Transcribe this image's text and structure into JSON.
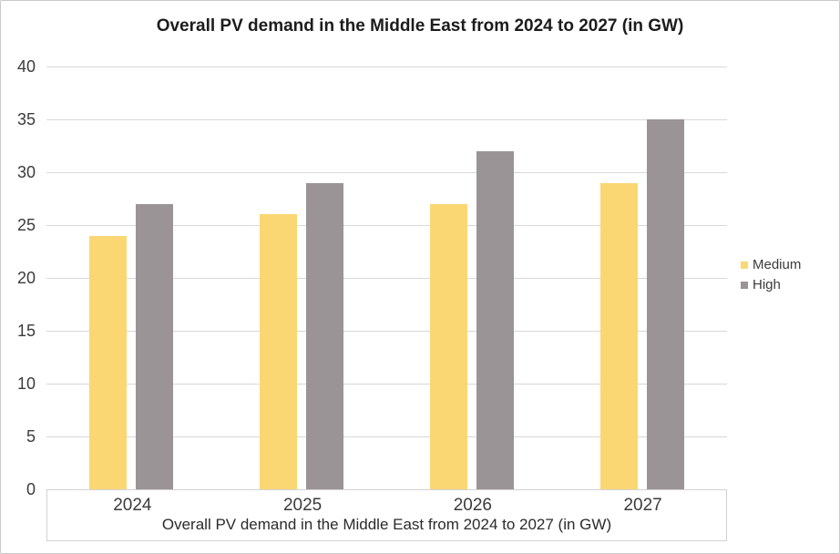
{
  "chart_data": {
    "type": "bar",
    "title": "Overall PV demand in the Middle East from 2024 to 2027 (in GW)",
    "xlabel": "Overall PV demand in the Middle East from 2024 to 2027 (in GW)",
    "ylabel": "",
    "categories": [
      "2024",
      "2025",
      "2026",
      "2027"
    ],
    "series": [
      {
        "name": "Medium",
        "color": "#FBD774",
        "values": [
          24,
          26,
          27,
          29
        ]
      },
      {
        "name": "High",
        "color": "#9A9496",
        "values": [
          27,
          29,
          32,
          35
        ]
      }
    ],
    "ylim": [
      0,
      40
    ],
    "yticks": [
      0,
      5,
      10,
      15,
      20,
      25,
      30,
      35,
      40
    ],
    "grid": true,
    "legend_position": "right",
    "legend_labels": [
      "Medium",
      "High"
    ]
  },
  "colors": {
    "bar_medium": "#FBD774",
    "bar_high": "#9A9496",
    "gridline": "#D8D8D8",
    "axis_box_border": "#D2D2D2",
    "frame_border": "#C9C9C9",
    "title_text": "#1C1C1C",
    "axis_text": "#3B3B3B",
    "background": "#FFFFFF"
  }
}
